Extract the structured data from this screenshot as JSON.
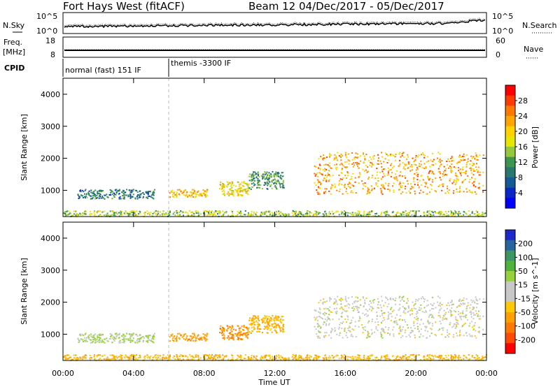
{
  "header": {
    "title": "Fort Hays West (fitACF)",
    "beam_date": "Beam 12  04/Dec/2017 - 05/Dec/2017"
  },
  "panels": {
    "nsky_label": "N.Sky",
    "nsearch_label": "N.Search",
    "noise_ticks_left": [
      "10^5",
      "10^0"
    ],
    "noise_ticks_right": [
      "10^5",
      "10^0"
    ],
    "freq_label_top": "Freq.",
    "freq_label_bottom": "[MHz]",
    "freq_ticks": [
      "18",
      "8"
    ],
    "nave_label": "Nave",
    "nave_ticks": [
      "60",
      "0"
    ],
    "cpid_label": "CPID",
    "cpid_segments": [
      {
        "label": "normal (fast) 151 IF",
        "start_hour": 0.0
      },
      {
        "label": "themis -3300 IF",
        "start_hour": 6.0
      }
    ]
  },
  "axes": {
    "ylabel": "Slant Range [km]",
    "y_ticks": [
      "4000",
      "3000",
      "2000",
      "1000"
    ],
    "x_ticks": [
      "00:00",
      "04:00",
      "08:00",
      "12:00",
      "16:00",
      "20:00",
      "00:00"
    ],
    "xlabel": "Time UT"
  },
  "colorbars": {
    "power": {
      "label": "Power [dB]",
      "ticks": [
        "28",
        "24",
        "20",
        "16",
        "12",
        "8",
        "4"
      ],
      "colors": [
        "#ff0000",
        "#ff3c00",
        "#ff7800",
        "#ffa500",
        "#ffd200",
        "#e6e600",
        "#96c83c",
        "#3c9650",
        "#28786e",
        "#145a96",
        "#0a28c8",
        "#0000ff"
      ]
    },
    "velocity": {
      "label": "Velocity [m s^-1]",
      "ticks": [
        "200",
        "100",
        "50",
        "15",
        "-15",
        "-50",
        "-100",
        "-200"
      ],
      "colors": [
        "#1e28c8",
        "#2864a0",
        "#3c9664",
        "#50b43c",
        "#96d23c",
        "#c8c8c8",
        "#c8c8c8",
        "#ffc800",
        "#ffa000",
        "#ff7800",
        "#ff4b00",
        "#ff0000"
      ]
    }
  },
  "chart_data": {
    "type": "heatmap",
    "x_range_hours": [
      0,
      24
    ],
    "y_range_km": [
      180,
      4500
    ],
    "scatter_regions": [
      {
        "name": "",
        "t0": 0.8,
        "t1": 5.2,
        "r0": 750,
        "r1": 1050,
        "power_db": 8,
        "velocity": 20
      },
      {
        "name": "",
        "t0": 6.0,
        "t1": 8.2,
        "r0": 800,
        "r1": 1050,
        "power_db": 20,
        "velocity": -60
      },
      {
        "name": "",
        "t0": 8.8,
        "t1": 10.5,
        "r0": 850,
        "r1": 1300,
        "power_db": 18,
        "velocity": -70
      },
      {
        "name": "",
        "t0": 10.5,
        "t1": 12.5,
        "r0": 1050,
        "r1": 1600,
        "power_db": 10,
        "velocity": -40
      },
      {
        "name": "",
        "t0": 14.2,
        "t1": 23.8,
        "r0": 900,
        "r1": 2200,
        "power_db": 22,
        "velocity": 0
      },
      {
        "name": "",
        "t0": 0.0,
        "t1": 24.0,
        "r0": 200,
        "r1": 380,
        "power_db": 14,
        "velocity": -40
      }
    ]
  }
}
